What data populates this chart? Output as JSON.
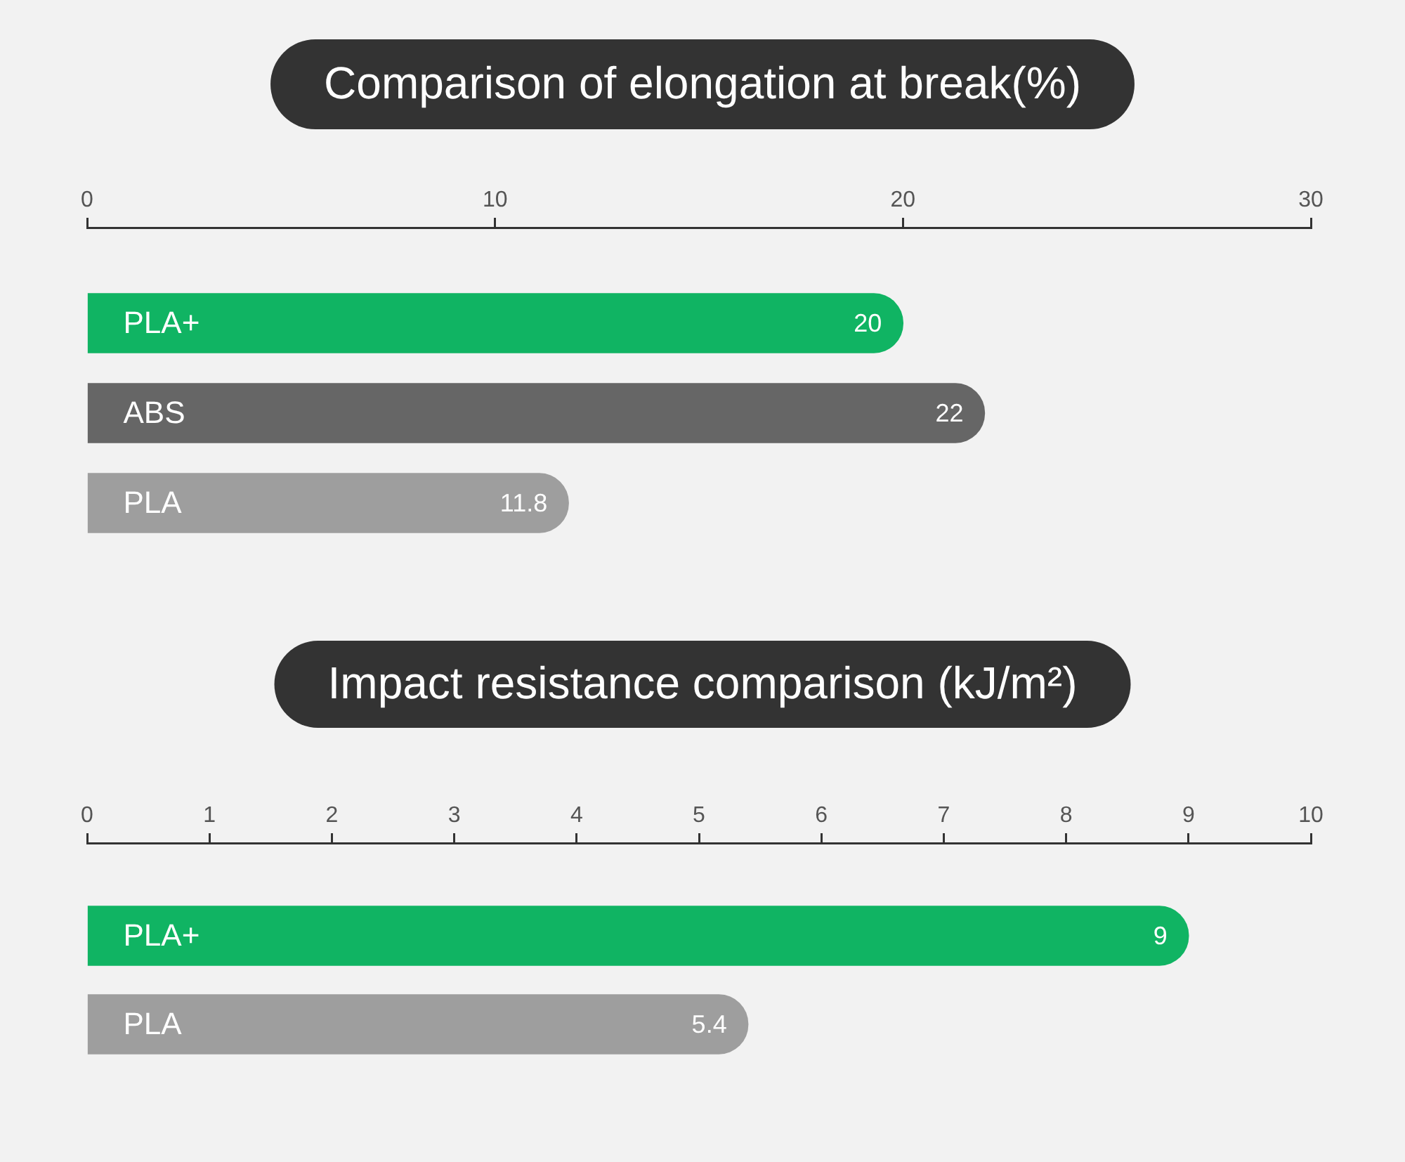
{
  "chart_data": [
    {
      "type": "bar",
      "title": "Comparison of elongation at break(%)",
      "orientation": "horizontal",
      "categories": [
        "PLA+",
        "ABS",
        "PLA"
      ],
      "values": [
        20,
        22,
        11.8
      ],
      "colors": [
        "#10b463",
        "#666666",
        "#9e9e9e"
      ],
      "xlim": [
        0,
        30
      ],
      "xticks": [
        0,
        10,
        20,
        30
      ],
      "data_labels": true
    },
    {
      "type": "bar",
      "title": "Impact resistance comparison (kJ/m²)",
      "orientation": "horizontal",
      "categories": [
        "PLA+",
        "PLA"
      ],
      "values": [
        9,
        5.4
      ],
      "colors": [
        "#10b463",
        "#9e9e9e"
      ],
      "xlim": [
        0,
        10
      ],
      "xticks": [
        0,
        1,
        2,
        3,
        4,
        5,
        6,
        7,
        8,
        9,
        10
      ],
      "data_labels": true
    }
  ]
}
